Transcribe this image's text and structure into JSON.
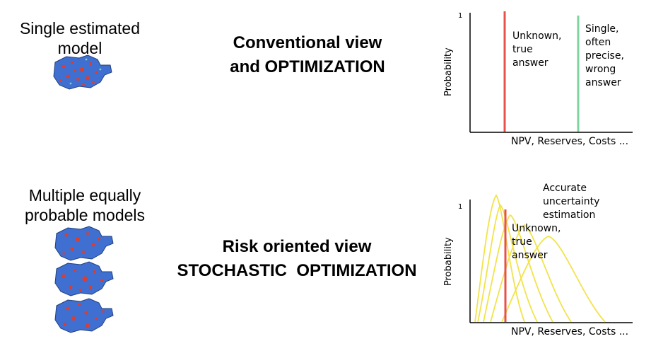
{
  "top": {
    "left_label": "Single estimated model",
    "middle_label_line1": "Conventional view",
    "middle_label_line2": "and OPTIMIZATION",
    "chart": {
      "y_label": "Probability",
      "y_tick": "1",
      "x_label": "NPV, Reserves, Costs ...",
      "red_annotation": "Unknown, true answer",
      "green_annotation": "Single, often precise, wrong answer"
    }
  },
  "bottom": {
    "left_label": "Multiple equally probable models",
    "middle_label_line1": "Risk oriented view",
    "middle_label_line2": "STOCHASTIC  OPTIMIZATION",
    "chart": {
      "y_label": "Probability",
      "y_tick": "1",
      "x_label": "NPV, Reserves, Costs ...",
      "red_annotation": "Unknown, true answer",
      "curves_annotation": "Accurate uncertainty estimation"
    }
  },
  "colors": {
    "true_answer": "#e8504a",
    "wrong_answer": "#7fd3a0",
    "distribution": "#f2e34a",
    "model_blue": "#3f6fd0",
    "model_red": "#e23b2a"
  },
  "icons": [
    "reservoir-model-map"
  ]
}
